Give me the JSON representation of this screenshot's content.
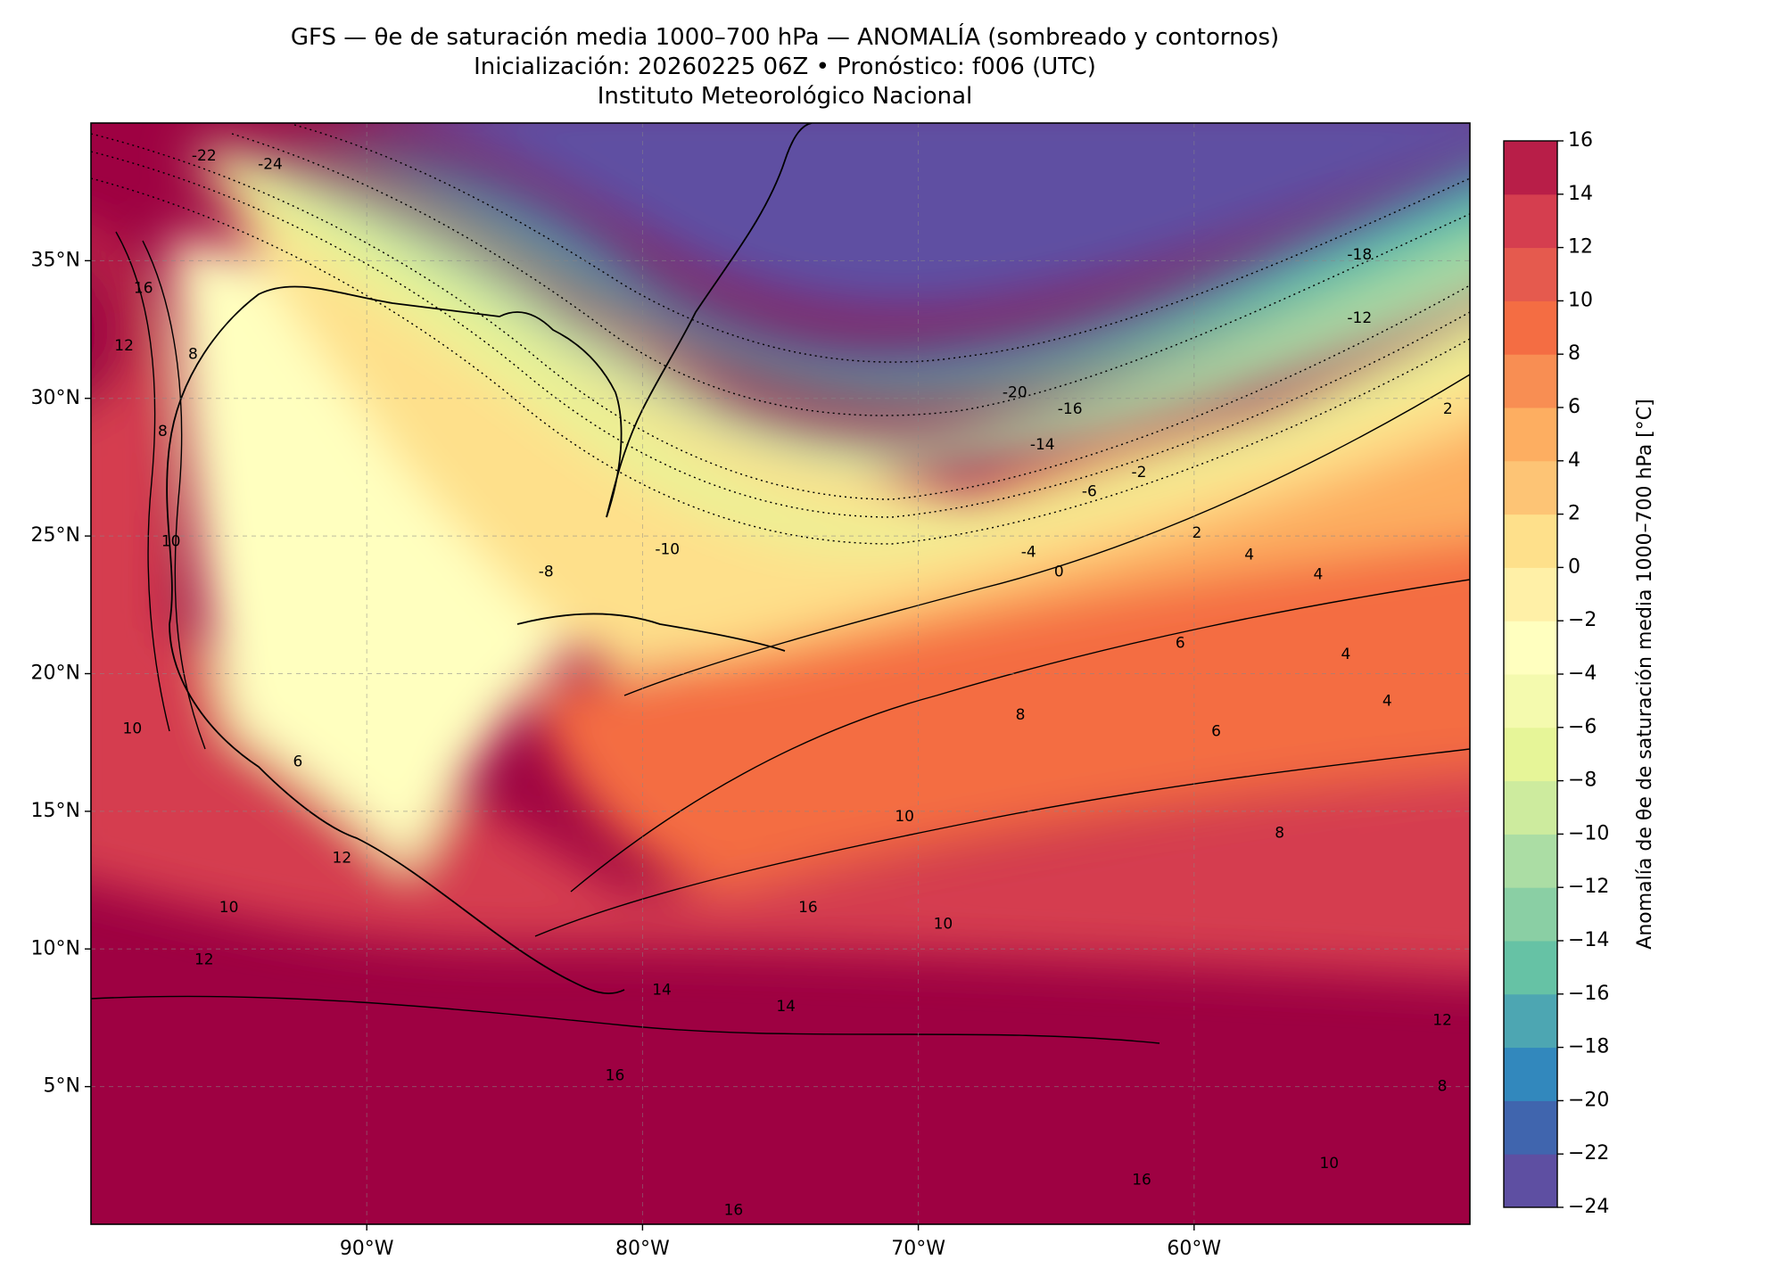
{
  "header": {
    "title_line1": "GFS — θe de saturación media 1000–700 hPa — ANOMALÍA (sombreado y contornos)",
    "title_line2": "Inicialización: 20260225 06Z   •   Pronóstico: f006 (UTC)",
    "title_line3": "Instituto Meteorológico Nacional"
  },
  "map": {
    "extent": {
      "lon_min": -100,
      "lon_max": -50,
      "lat_min": 0,
      "lat_max": 40
    },
    "lon_ticks": [
      {
        "value": -90,
        "label": "90°W"
      },
      {
        "value": -80,
        "label": "80°W"
      },
      {
        "value": -70,
        "label": "70°W"
      },
      {
        "value": -60,
        "label": "60°W"
      }
    ],
    "lat_ticks": [
      {
        "value": 35,
        "label": "35°N"
      },
      {
        "value": 30,
        "label": "30°N"
      },
      {
        "value": 25,
        "label": "25°N"
      },
      {
        "value": 20,
        "label": "20°N"
      },
      {
        "value": 15,
        "label": "15°N"
      },
      {
        "value": 10,
        "label": "10°N"
      },
      {
        "value": 5,
        "label": "5°N"
      }
    ],
    "contour_labels": [
      {
        "text": "-22",
        "lon": -95.9,
        "lat": 38.8
      },
      {
        "text": "-24",
        "lon": -93.5,
        "lat": 38.5
      },
      {
        "text": "-20",
        "lon": -66.5,
        "lat": 30.2
      },
      {
        "text": "-18",
        "lon": -54.0,
        "lat": 35.2
      },
      {
        "text": "-16",
        "lon": -64.5,
        "lat": 29.6
      },
      {
        "text": "-14",
        "lon": -65.5,
        "lat": 28.3
      },
      {
        "text": "-12",
        "lon": -54.0,
        "lat": 32.9
      },
      {
        "text": "-10",
        "lon": -79.1,
        "lat": 24.5
      },
      {
        "text": "-8",
        "lon": -83.5,
        "lat": 23.7
      },
      {
        "text": "-6",
        "lon": -63.8,
        "lat": 26.6
      },
      {
        "text": "-4",
        "lon": -66.0,
        "lat": 24.4
      },
      {
        "text": "-2",
        "lon": -62.0,
        "lat": 27.3
      },
      {
        "text": "0",
        "lon": -64.9,
        "lat": 23.7
      },
      {
        "text": "2",
        "lon": -59.9,
        "lat": 25.1
      },
      {
        "text": "2",
        "lon": -50.8,
        "lat": 29.6
      },
      {
        "text": "4",
        "lon": -58.0,
        "lat": 24.3
      },
      {
        "text": "4",
        "lon": -55.5,
        "lat": 23.6
      },
      {
        "text": "4",
        "lon": -54.5,
        "lat": 20.7
      },
      {
        "text": "4",
        "lon": -53.0,
        "lat": 19.0
      },
      {
        "text": "6",
        "lon": -60.5,
        "lat": 21.1
      },
      {
        "text": "6",
        "lon": -59.2,
        "lat": 17.9
      },
      {
        "text": "6",
        "lon": -92.5,
        "lat": 16.8
      },
      {
        "text": "8",
        "lon": -97.4,
        "lat": 28.8
      },
      {
        "text": "8",
        "lon": -96.3,
        "lat": 31.6
      },
      {
        "text": "8",
        "lon": -56.9,
        "lat": 14.2
      },
      {
        "text": "8",
        "lon": -51.0,
        "lat": 5.0
      },
      {
        "text": "8",
        "lon": -66.3,
        "lat": 18.5
      },
      {
        "text": "10",
        "lon": -97.1,
        "lat": 24.8
      },
      {
        "text": "10",
        "lon": -98.5,
        "lat": 18.0
      },
      {
        "text": "10",
        "lon": -95.0,
        "lat": 11.5
      },
      {
        "text": "10",
        "lon": -70.5,
        "lat": 14.8
      },
      {
        "text": "10",
        "lon": -69.1,
        "lat": 10.9
      },
      {
        "text": "10",
        "lon": -55.1,
        "lat": 2.2
      },
      {
        "text": "12",
        "lon": -98.8,
        "lat": 31.9
      },
      {
        "text": "12",
        "lon": -90.9,
        "lat": 13.3
      },
      {
        "text": "12",
        "lon": -95.9,
        "lat": 9.6
      },
      {
        "text": "12",
        "lon": -51.0,
        "lat": 7.4
      },
      {
        "text": "14",
        "lon": -79.3,
        "lat": 8.5
      },
      {
        "text": "14",
        "lon": -74.8,
        "lat": 7.9
      },
      {
        "text": "16",
        "lon": -98.1,
        "lat": 34.0
      },
      {
        "text": "16",
        "lon": -74.0,
        "lat": 11.5
      },
      {
        "text": "16",
        "lon": -81.0,
        "lat": 5.4
      },
      {
        "text": "16",
        "lon": -61.9,
        "lat": 1.6
      },
      {
        "text": "16",
        "lon": -76.7,
        "lat": 0.5
      }
    ]
  },
  "colorbar": {
    "label": "Anomalía de θe de saturación media 1000–700 hPa [°C]",
    "levels": [
      -24,
      -22,
      -20,
      -18,
      -16,
      -14,
      -12,
      -10,
      -8,
      -6,
      -4,
      -2,
      0,
      2,
      4,
      6,
      8,
      10,
      12,
      14,
      16
    ],
    "tick_labels": [
      "−24",
      "−22",
      "−20",
      "−18",
      "−16",
      "−14",
      "−12",
      "−10",
      "−8",
      "−6",
      "−4",
      "−2",
      "0",
      "2",
      "4",
      "6",
      "8",
      "10",
      "12",
      "14",
      "16"
    ],
    "colors": [
      "#5e4fa2",
      "#4065ae",
      "#3288bd",
      "#4da6b2",
      "#66c2a5",
      "#8acfa4",
      "#abdda4",
      "#cdeb9e",
      "#e6f598",
      "#f4faae",
      "#ffffbf",
      "#fff0a7",
      "#fee08b",
      "#fdc475",
      "#fdae61",
      "#f88e53",
      "#f46d43",
      "#e55a4e",
      "#d53e4f",
      "#b81e48",
      "#9e0142"
    ]
  }
}
